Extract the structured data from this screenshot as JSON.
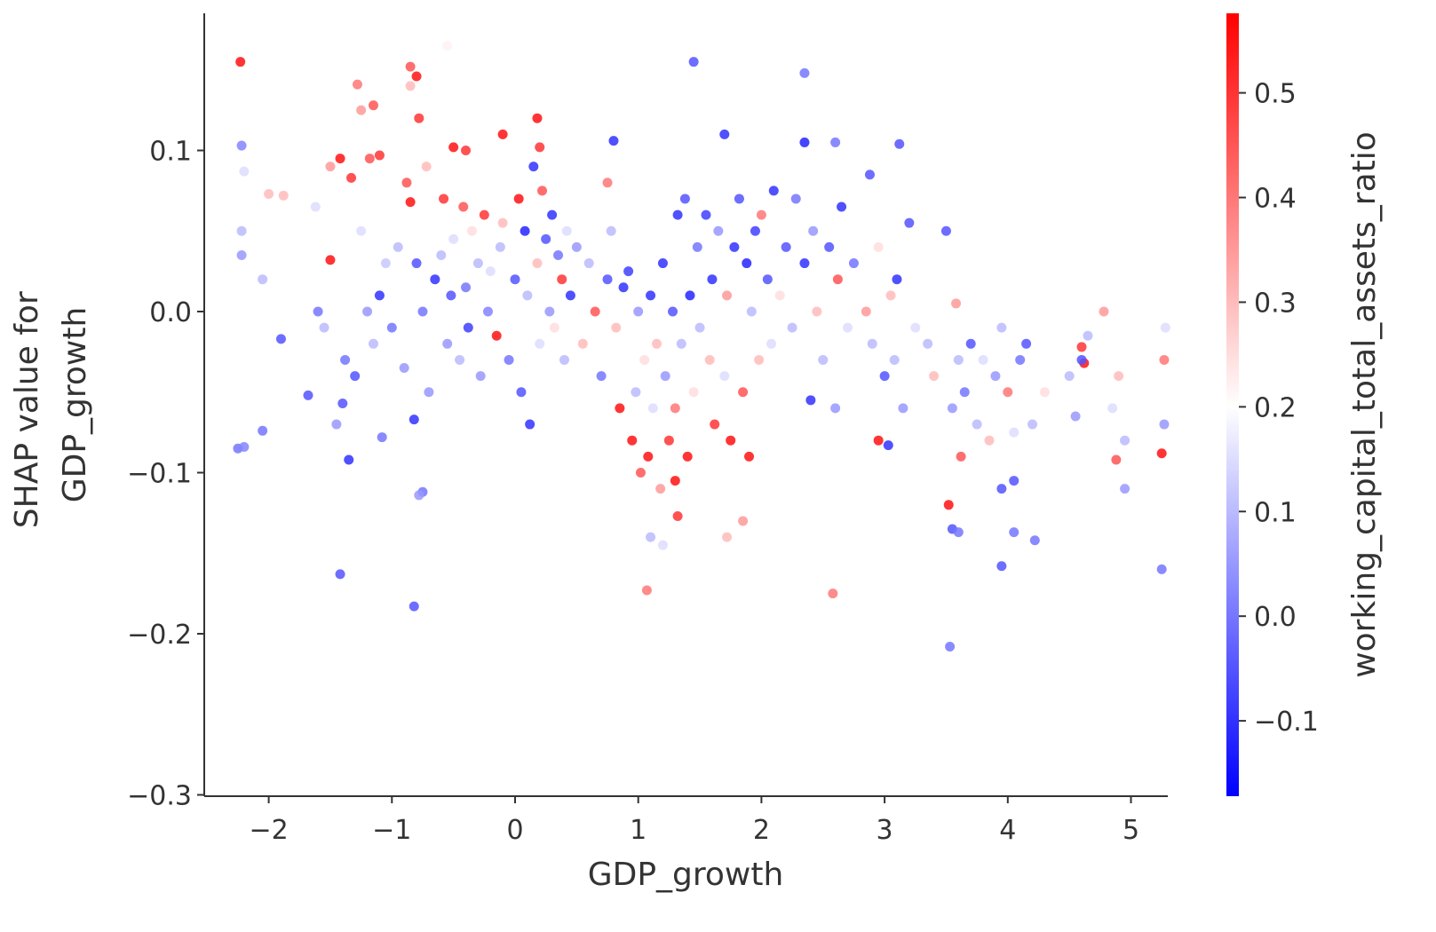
{
  "chart_data": {
    "type": "scatter",
    "title": "",
    "xlabel": "GDP_growth",
    "ylabel_lines": [
      "SHAP value for",
      "GDP_growth"
    ],
    "colorbar_label": "working_capital_total_assets_ratio",
    "xlim": [
      -2.52,
      5.3
    ],
    "ylim": [
      -0.3,
      0.185
    ],
    "xticks": [
      -2,
      -1,
      0,
      1,
      2,
      3,
      4,
      5
    ],
    "xtick_labels": [
      "−2",
      "−1",
      "0",
      "1",
      "2",
      "3",
      "4",
      "5"
    ],
    "yticks": [
      0.1,
      0.0,
      -0.1,
      -0.2,
      -0.3
    ],
    "ytick_labels": [
      "0.1",
      "0.0",
      "−0.1",
      "−0.2",
      "−0.3"
    ],
    "colorbar_range": [
      -0.172,
      0.576
    ],
    "colorbar_ticks": [
      0.5,
      0.4,
      0.3,
      0.2,
      0.1,
      0.0,
      -0.1
    ],
    "colorbar_tick_labels": [
      "0.5",
      "0.4",
      "0.3",
      "0.2",
      "0.1",
      "0.0",
      "−0.1"
    ],
    "colormap": {
      "low": "#0000ff",
      "mid": "#ffffff",
      "high": "#ff0000"
    },
    "grid": false,
    "point_fields": [
      "GDP_growth",
      "SHAP value",
      "working_capital_total_assets_ratio"
    ],
    "points": [
      [
        -2.23,
        0.155,
        0.55
      ],
      [
        -2.22,
        0.103,
        0.02
      ],
      [
        -2.2,
        0.087,
        0.15
      ],
      [
        -2.22,
        0.05,
        0.1
      ],
      [
        -2.22,
        0.035,
        0.05
      ],
      [
        -2.25,
        -0.085,
        0.0
      ],
      [
        -2.2,
        -0.084,
        0.02
      ],
      [
        -2.05,
        -0.074,
        0.0
      ],
      [
        -2.0,
        0.073,
        0.3
      ],
      [
        -1.88,
        0.072,
        0.3
      ],
      [
        -2.05,
        0.02,
        0.1
      ],
      [
        -1.9,
        -0.017,
        -0.05
      ],
      [
        -1.68,
        -0.052,
        -0.05
      ],
      [
        -1.62,
        0.065,
        0.15
      ],
      [
        -1.5,
        0.09,
        0.35
      ],
      [
        -1.5,
        0.032,
        0.55
      ],
      [
        -1.42,
        -0.163,
        -0.05
      ],
      [
        -1.4,
        -0.057,
        -0.05
      ],
      [
        -1.35,
        -0.092,
        -0.1
      ],
      [
        -1.42,
        0.095,
        0.55
      ],
      [
        -1.33,
        0.083,
        0.5
      ],
      [
        -1.28,
        0.141,
        0.4
      ],
      [
        -1.25,
        0.125,
        0.35
      ],
      [
        -1.18,
        0.095,
        0.45
      ],
      [
        -1.15,
        0.128,
        0.45
      ],
      [
        -1.1,
        0.097,
        0.5
      ],
      [
        -1.1,
        0.01,
        -0.1
      ],
      [
        -1.08,
        -0.078,
        0.0
      ],
      [
        -0.85,
        0.152,
        0.45
      ],
      [
        -0.85,
        0.14,
        0.3
      ],
      [
        -0.8,
        0.146,
        0.55
      ],
      [
        -0.78,
        0.12,
        0.5
      ],
      [
        -0.82,
        -0.183,
        -0.05
      ],
      [
        -0.82,
        -0.067,
        -0.1
      ],
      [
        -0.75,
        -0.112,
        0.0
      ],
      [
        -0.78,
        -0.114,
        0.05
      ],
      [
        -0.55,
        0.165,
        0.22
      ],
      [
        -0.5,
        0.102,
        0.55
      ],
      [
        -0.4,
        0.1,
        0.5
      ],
      [
        -0.1,
        0.11,
        0.55
      ],
      [
        0.18,
        0.12,
        0.55
      ],
      [
        0.2,
        0.102,
        0.5
      ],
      [
        0.75,
        0.08,
        0.4
      ],
      [
        0.8,
        0.106,
        -0.1
      ],
      [
        1.45,
        0.155,
        -0.05
      ],
      [
        1.7,
        0.11,
        -0.1
      ],
      [
        2.35,
        0.148,
        0.0
      ],
      [
        2.35,
        0.105,
        -0.12
      ],
      [
        2.6,
        0.105,
        0.0
      ],
      [
        3.12,
        0.104,
        -0.05
      ],
      [
        1.07,
        -0.173,
        0.4
      ],
      [
        1.1,
        -0.14,
        0.1
      ],
      [
        1.2,
        -0.145,
        0.15
      ],
      [
        1.32,
        -0.127,
        0.5
      ],
      [
        1.3,
        -0.105,
        0.55
      ],
      [
        2.58,
        -0.175,
        0.4
      ],
      [
        1.85,
        -0.13,
        0.35
      ],
      [
        1.72,
        -0.14,
        0.3
      ],
      [
        3.53,
        -0.208,
        0.0
      ],
      [
        3.52,
        -0.12,
        0.55
      ],
      [
        3.55,
        -0.135,
        -0.05
      ],
      [
        3.6,
        -0.137,
        0.0
      ],
      [
        3.95,
        -0.158,
        -0.05
      ],
      [
        4.05,
        -0.137,
        0.0
      ],
      [
        4.22,
        -0.142,
        0.0
      ],
      [
        3.95,
        -0.11,
        -0.05
      ],
      [
        4.05,
        -0.105,
        -0.05
      ],
      [
        4.6,
        -0.022,
        0.5
      ],
      [
        4.62,
        -0.032,
        0.55
      ],
      [
        4.88,
        -0.092,
        0.45
      ],
      [
        4.95,
        -0.11,
        0.05
      ],
      [
        5.25,
        -0.088,
        0.55
      ],
      [
        5.27,
        -0.03,
        0.4
      ],
      [
        5.25,
        -0.16,
        0.0
      ],
      [
        2.95,
        -0.08,
        0.55
      ],
      [
        3.03,
        -0.083,
        -0.1
      ],
      [
        -1.6,
        0.0,
        0.0
      ],
      [
        -1.55,
        -0.01,
        0.1
      ],
      [
        -1.45,
        -0.07,
        0.05
      ],
      [
        -1.38,
        -0.03,
        0.0
      ],
      [
        -1.3,
        -0.04,
        -0.05
      ],
      [
        -1.25,
        0.05,
        0.15
      ],
      [
        -1.2,
        0.0,
        0.05
      ],
      [
        -1.15,
        -0.02,
        0.1
      ],
      [
        -1.05,
        0.03,
        0.12
      ],
      [
        -1.0,
        -0.01,
        0.0
      ],
      [
        -0.95,
        0.04,
        0.1
      ],
      [
        -0.9,
        -0.035,
        0.05
      ],
      [
        -0.88,
        0.08,
        0.45
      ],
      [
        -0.85,
        0.068,
        0.55
      ],
      [
        -0.8,
        0.03,
        -0.05
      ],
      [
        -0.75,
        0.0,
        0.0
      ],
      [
        -0.72,
        0.09,
        0.3
      ],
      [
        -0.7,
        -0.05,
        0.05
      ],
      [
        -0.68,
        0.06,
        0.2
      ],
      [
        -0.65,
        0.02,
        -0.1
      ],
      [
        -0.6,
        0.035,
        0.1
      ],
      [
        -0.58,
        0.07,
        0.5
      ],
      [
        -0.55,
        -0.02,
        0.05
      ],
      [
        -0.52,
        0.01,
        -0.05
      ],
      [
        -0.5,
        0.045,
        0.15
      ],
      [
        -0.45,
        -0.03,
        0.1
      ],
      [
        -0.42,
        0.065,
        0.45
      ],
      [
        -0.4,
        0.015,
        0.0
      ],
      [
        -0.38,
        -0.01,
        -0.08
      ],
      [
        -0.35,
        0.05,
        0.25
      ],
      [
        -0.3,
        0.03,
        0.1
      ],
      [
        -0.28,
        -0.04,
        0.05
      ],
      [
        -0.25,
        0.06,
        0.5
      ],
      [
        -0.22,
        0.0,
        0.02
      ],
      [
        -0.2,
        0.025,
        0.15
      ],
      [
        -0.15,
        -0.015,
        0.55
      ],
      [
        -0.12,
        0.04,
        0.1
      ],
      [
        -0.1,
        0.055,
        0.3
      ],
      [
        -0.05,
        -0.03,
        0.0
      ],
      [
        0.0,
        0.02,
        -0.05
      ],
      [
        0.03,
        0.07,
        0.55
      ],
      [
        0.05,
        -0.05,
        -0.05
      ],
      [
        0.08,
        0.05,
        -0.12
      ],
      [
        0.1,
        0.01,
        0.1
      ],
      [
        0.12,
        -0.07,
        -0.1
      ],
      [
        0.15,
        0.09,
        -0.1
      ],
      [
        0.18,
        0.03,
        0.3
      ],
      [
        0.2,
        -0.02,
        0.15
      ],
      [
        0.22,
        0.075,
        0.45
      ],
      [
        0.25,
        0.045,
        -0.05
      ],
      [
        0.28,
        0.0,
        0.05
      ],
      [
        0.3,
        0.06,
        -0.1
      ],
      [
        0.32,
        -0.01,
        0.25
      ],
      [
        0.35,
        0.035,
        0.0
      ],
      [
        0.38,
        0.02,
        0.5
      ],
      [
        0.4,
        -0.03,
        0.1
      ],
      [
        0.42,
        0.05,
        0.15
      ],
      [
        0.45,
        0.01,
        -0.1
      ],
      [
        0.5,
        0.04,
        0.05
      ],
      [
        0.55,
        -0.02,
        0.3
      ],
      [
        0.6,
        0.03,
        0.1
      ],
      [
        0.65,
        0.0,
        0.45
      ],
      [
        0.7,
        -0.04,
        0.0
      ],
      [
        0.75,
        0.02,
        -0.05
      ],
      [
        0.78,
        0.05,
        0.1
      ],
      [
        0.82,
        -0.01,
        0.3
      ],
      [
        0.85,
        -0.06,
        0.55
      ],
      [
        0.88,
        0.015,
        -0.1
      ],
      [
        0.9,
        -0.03,
        0.2
      ],
      [
        0.92,
        0.025,
        -0.08
      ],
      [
        0.95,
        -0.08,
        0.55
      ],
      [
        0.98,
        -0.05,
        0.1
      ],
      [
        1.0,
        0.0,
        0.05
      ],
      [
        1.02,
        -0.1,
        0.45
      ],
      [
        1.05,
        -0.03,
        0.25
      ],
      [
        1.08,
        -0.09,
        0.55
      ],
      [
        1.1,
        0.01,
        -0.1
      ],
      [
        1.12,
        -0.06,
        0.15
      ],
      [
        1.15,
        -0.02,
        0.3
      ],
      [
        1.18,
        -0.11,
        0.35
      ],
      [
        1.2,
        0.03,
        -0.1
      ],
      [
        1.22,
        -0.04,
        0.05
      ],
      [
        1.25,
        -0.08,
        0.5
      ],
      [
        1.28,
        0.0,
        -0.05
      ],
      [
        1.3,
        -0.06,
        0.4
      ],
      [
        1.32,
        0.06,
        -0.1
      ],
      [
        1.35,
        -0.02,
        0.1
      ],
      [
        1.38,
        0.07,
        -0.05
      ],
      [
        1.4,
        -0.09,
        0.55
      ],
      [
        1.42,
        0.01,
        -0.12
      ],
      [
        1.45,
        -0.05,
        0.25
      ],
      [
        1.48,
        0.04,
        0.0
      ],
      [
        1.5,
        -0.01,
        0.1
      ],
      [
        1.55,
        0.06,
        -0.08
      ],
      [
        1.58,
        -0.03,
        0.3
      ],
      [
        1.6,
        0.02,
        -0.1
      ],
      [
        1.62,
        -0.07,
        0.5
      ],
      [
        1.65,
        0.05,
        0.05
      ],
      [
        1.7,
        -0.04,
        0.15
      ],
      [
        1.72,
        0.01,
        0.35
      ],
      [
        1.75,
        -0.08,
        0.55
      ],
      [
        1.78,
        0.04,
        -0.1
      ],
      [
        1.8,
        -0.02,
        0.2
      ],
      [
        1.82,
        0.07,
        -0.05
      ],
      [
        1.85,
        -0.05,
        0.45
      ],
      [
        1.88,
        0.03,
        -0.12
      ],
      [
        1.9,
        -0.09,
        0.55
      ],
      [
        1.92,
        0.0,
        0.1
      ],
      [
        1.95,
        0.05,
        -0.08
      ],
      [
        1.98,
        -0.03,
        0.3
      ],
      [
        2.0,
        0.06,
        0.4
      ],
      [
        2.05,
        0.02,
        -0.05
      ],
      [
        2.08,
        -0.02,
        0.15
      ],
      [
        2.1,
        0.075,
        -0.1
      ],
      [
        2.15,
        0.01,
        0.25
      ],
      [
        2.2,
        0.04,
        -0.05
      ],
      [
        2.25,
        -0.01,
        0.1
      ],
      [
        2.28,
        0.07,
        0.0
      ],
      [
        2.3,
        -0.04,
        0.2
      ],
      [
        2.35,
        0.03,
        -0.1
      ],
      [
        2.4,
        -0.055,
        -0.1
      ],
      [
        2.42,
        0.05,
        0.05
      ],
      [
        2.45,
        0.0,
        0.3
      ],
      [
        2.5,
        -0.03,
        0.1
      ],
      [
        2.55,
        0.04,
        -0.05
      ],
      [
        2.6,
        -0.06,
        0.05
      ],
      [
        2.62,
        0.02,
        0.45
      ],
      [
        2.65,
        0.065,
        -0.1
      ],
      [
        2.7,
        -0.01,
        0.15
      ],
      [
        2.75,
        0.03,
        0.0
      ],
      [
        2.8,
        -0.05,
        0.2
      ],
      [
        2.85,
        0.0,
        0.35
      ],
      [
        2.88,
        0.085,
        -0.05
      ],
      [
        2.9,
        -0.02,
        0.1
      ],
      [
        2.95,
        0.04,
        0.25
      ],
      [
        3.0,
        -0.04,
        -0.05
      ],
      [
        3.05,
        0.01,
        0.3
      ],
      [
        3.08,
        -0.03,
        0.1
      ],
      [
        3.1,
        0.02,
        -0.1
      ],
      [
        3.15,
        -0.06,
        0.05
      ],
      [
        3.2,
        0.055,
        -0.05
      ],
      [
        3.25,
        -0.01,
        0.15
      ],
      [
        3.35,
        -0.02,
        0.1
      ],
      [
        3.4,
        -0.04,
        0.3
      ],
      [
        3.45,
        0.0,
        0.2
      ],
      [
        3.5,
        0.05,
        -0.05
      ],
      [
        3.55,
        -0.06,
        0.05
      ],
      [
        3.58,
        0.005,
        0.35
      ],
      [
        3.6,
        -0.03,
        0.1
      ],
      [
        3.62,
        -0.09,
        0.45
      ],
      [
        3.65,
        -0.05,
        0.0
      ],
      [
        3.7,
        -0.02,
        -0.05
      ],
      [
        3.75,
        -0.07,
        0.1
      ],
      [
        3.8,
        -0.03,
        0.15
      ],
      [
        3.85,
        -0.08,
        0.3
      ],
      [
        3.9,
        -0.04,
        0.05
      ],
      [
        3.95,
        -0.01,
        0.1
      ],
      [
        4.0,
        -0.05,
        0.4
      ],
      [
        4.05,
        -0.075,
        0.15
      ],
      [
        4.1,
        -0.03,
        0.0
      ],
      [
        4.15,
        -0.02,
        -0.05
      ],
      [
        4.2,
        -0.07,
        0.1
      ],
      [
        4.3,
        -0.05,
        0.25
      ],
      [
        4.4,
        -0.085,
        0.2
      ],
      [
        4.5,
        -0.04,
        0.1
      ],
      [
        4.55,
        -0.065,
        0.05
      ],
      [
        4.6,
        -0.03,
        -0.05
      ],
      [
        4.65,
        -0.015,
        0.1
      ],
      [
        4.78,
        0.0,
        0.35
      ],
      [
        4.85,
        -0.06,
        0.15
      ],
      [
        4.9,
        -0.04,
        0.3
      ],
      [
        4.95,
        -0.08,
        0.1
      ],
      [
        5.0,
        -0.05,
        0.2
      ],
      [
        5.28,
        -0.01,
        0.15
      ],
      [
        5.27,
        -0.07,
        0.05
      ]
    ]
  }
}
